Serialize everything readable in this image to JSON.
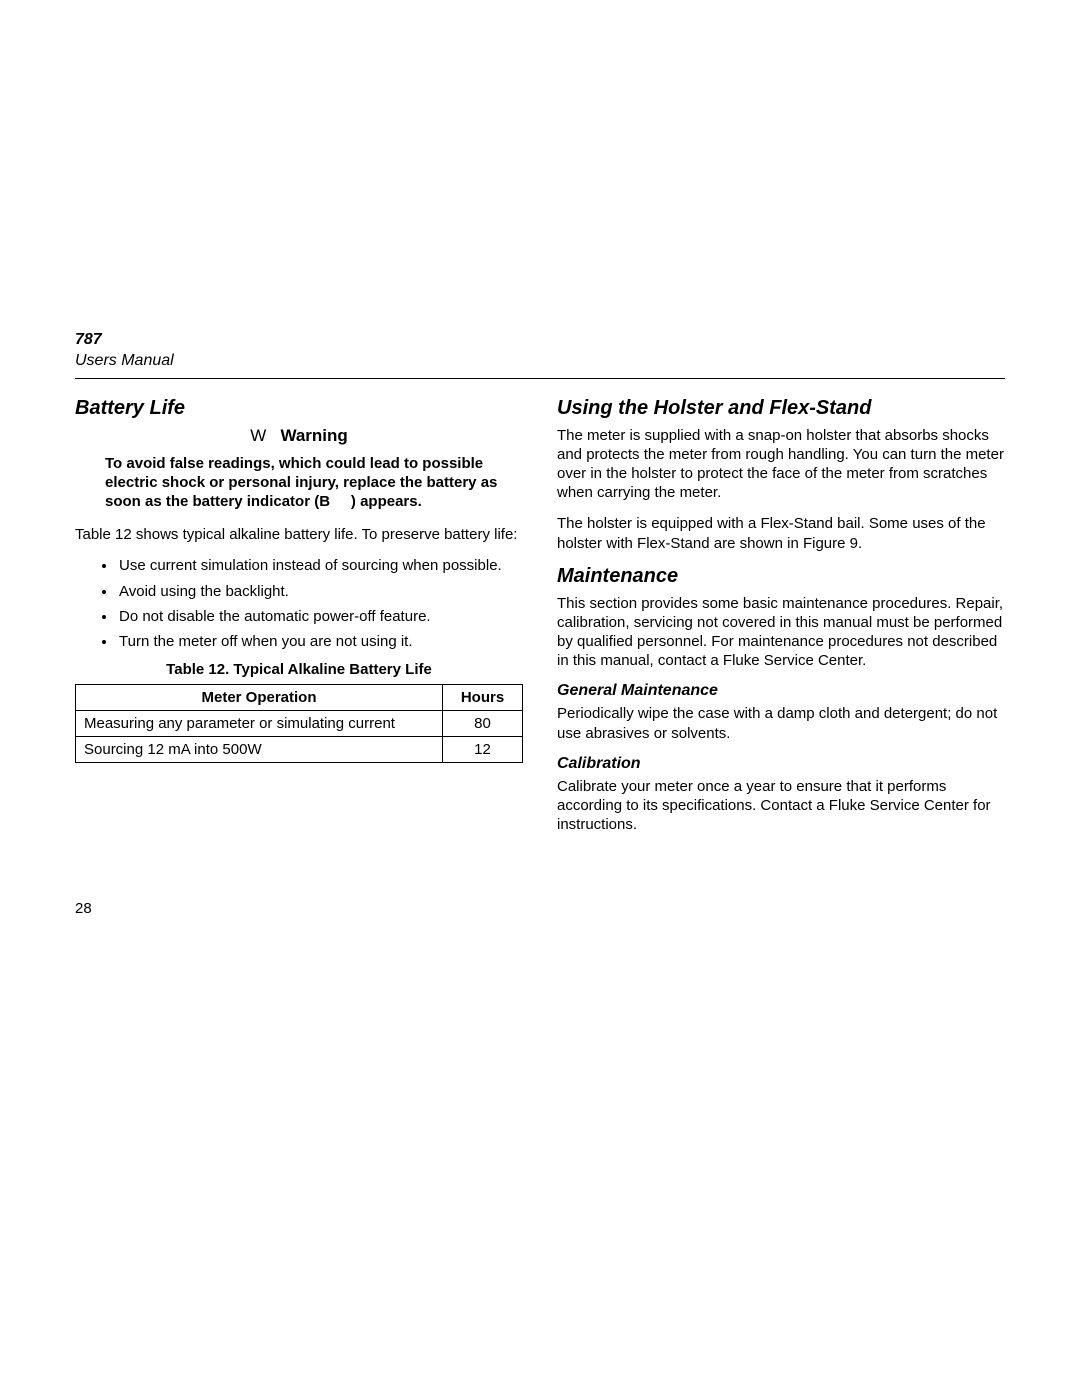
{
  "header": {
    "model": "787",
    "manual": "Users Manual"
  },
  "left": {
    "title": "Battery Life",
    "warning_symbol": "W",
    "warning_word": "Warning",
    "warning_text_1": "To avoid false readings, which could lead to possible electric shock or personal injury, replace the battery as soon as the battery indicator (",
    "warning_symbol2": "B",
    "warning_text_2": ") appears.",
    "intro": "Table 12 shows typical alkaline battery life. To preserve battery life:",
    "bullets": [
      "Use current simulation instead of sourcing when possible.",
      "Avoid using the backlight.",
      "Do not disable the automatic power-off feature.",
      "Turn the meter off when you are not using it."
    ],
    "table_caption": "Table 12. Typical Alkaline Battery Life",
    "table": {
      "col1": "Meter Operation",
      "col2": "Hours",
      "rows": [
        {
          "op": "Measuring any parameter or simulating current",
          "hours": "80"
        },
        {
          "op": "Sourcing 12 mA into 500W",
          "hours": "12"
        }
      ]
    }
  },
  "right": {
    "holster_title": "Using the Holster and Flex-Stand",
    "holster_p1": "The meter is supplied with a snap-on holster that absorbs shocks and protects the meter from rough handling. You can turn the meter over in the holster to protect the face of the meter from scratches when carrying the meter.",
    "holster_p2": "The holster is equipped with a Flex-Stand bail. Some uses of the holster with Flex-Stand are shown in Figure 9.",
    "maint_title": "Maintenance",
    "maint_p1": "This section provides some basic maintenance procedures. Repair, calibration, servicing not covered in this manual must be performed by qualified personnel. For maintenance procedures not described in this manual, contact a Fluke Service Center.",
    "general_title": "General Maintenance",
    "general_p1": "Periodically wipe the case with a damp cloth and detergent; do not use abrasives or solvents.",
    "calib_title": "Calibration",
    "calib_p1": "Calibrate your meter once a year to ensure that it performs according to its specifications. Contact a Fluke Service Center for instructions."
  },
  "page_number": "28"
}
